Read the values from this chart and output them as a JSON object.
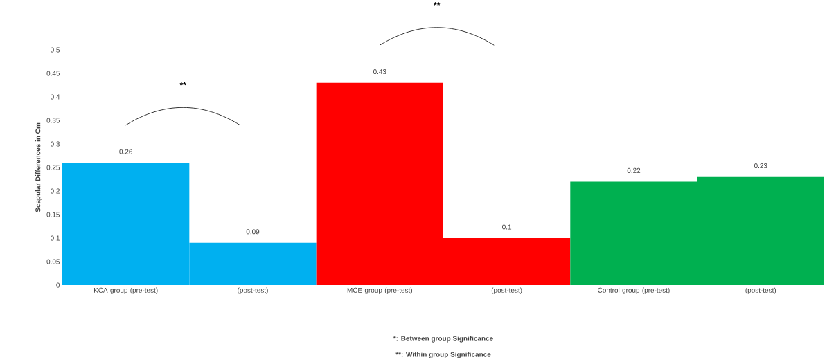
{
  "chart_data": {
    "type": "bar",
    "ylabel": "Scapular Differences in Cm",
    "categories": [
      "KCA group (pre-test)",
      "(post-test)",
      "MCE group (pre-test)",
      "(post-test)",
      "Control group (pre-test)",
      "(post-test)"
    ],
    "values": [
      0.26,
      0.09,
      0.43,
      0.1,
      0.22,
      0.23
    ],
    "colors": [
      "#00b0f0",
      "#00b0f0",
      "#ff0000",
      "#ff0000",
      "#00b050",
      "#00b050"
    ],
    "ylim": [
      0,
      0.5
    ],
    "yticks": [
      0,
      0.05,
      0.1,
      0.15,
      0.2,
      0.25,
      0.3,
      0.35,
      0.4,
      0.45,
      0.5
    ],
    "data_labels": true,
    "grid": false,
    "annotations": [
      "**",
      "**",
      "*: Between group Significance",
      "**: Within group Significance"
    ]
  }
}
